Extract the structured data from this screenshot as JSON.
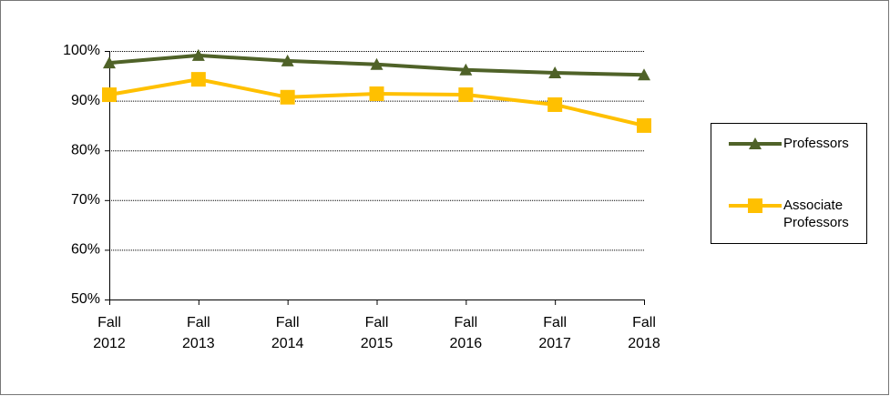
{
  "chart_data": {
    "type": "line",
    "categories": [
      "Fall 2012",
      "Fall 2013",
      "Fall 2014",
      "Fall 2015",
      "Fall 2016",
      "Fall 2017",
      "Fall 2018"
    ],
    "series": [
      {
        "name": "Professors",
        "color": "#4f6228",
        "marker": "triangle",
        "values": [
          97.6,
          99.1,
          98.0,
          97.3,
          96.2,
          95.6,
          95.2
        ]
      },
      {
        "name": "Associate Professors",
        "color": "#ffc000",
        "marker": "square",
        "values": [
          91.2,
          94.3,
          90.7,
          91.4,
          91.2,
          89.2,
          85.0
        ]
      }
    ],
    "ylim": [
      50,
      100
    ],
    "yticks": [
      {
        "value": 50,
        "label": "50%"
      },
      {
        "value": 60,
        "label": "60%"
      },
      {
        "value": 70,
        "label": "70%"
      },
      {
        "value": 80,
        "label": "80%"
      },
      {
        "value": 90,
        "label": "90%"
      },
      {
        "value": 100,
        "label": "100%"
      }
    ],
    "grid": true,
    "legend": "right"
  }
}
